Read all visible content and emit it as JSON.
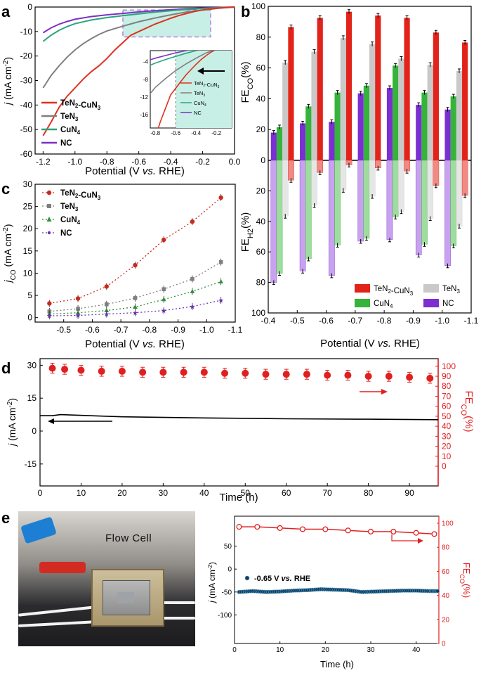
{
  "panels": {
    "a": "a",
    "b": "b",
    "c": "c",
    "d": "d",
    "e": "e"
  },
  "photo_label": "Flow   Cell",
  "chart_data": [
    {
      "id": "a",
      "type": "line",
      "xlabel": "Potential (V vs. RHE)",
      "ylabel": "j (mA cm-2)",
      "xlim": [
        -1.25,
        0.0
      ],
      "ylim": [
        -60,
        0
      ],
      "xticks": [
        -1.2,
        -1.0,
        -0.8,
        -0.6,
        -0.4,
        -0.2,
        0.0
      ],
      "xtick_labels": [
        "-1.2",
        "-1.0",
        "-0.8",
        "-0.6",
        "-0.4",
        "-0.2",
        "0.0"
      ],
      "yticks": [
        0,
        -10,
        -20,
        -30,
        -40,
        -50,
        -60
      ],
      "ytick_labels": [
        "0",
        "-10",
        "-20",
        "-30",
        "-40",
        "-50",
        "-60"
      ],
      "legend": [
        "TeN2-CuN3",
        "TeN3",
        "CuN4",
        "NC"
      ],
      "series": [
        {
          "name": "TeN2-CuN3",
          "color": "#e0301e",
          "x": [
            -1.2,
            -1.15,
            -1.1,
            -1.05,
            -1.0,
            -0.95,
            -0.9,
            -0.85,
            -0.8,
            -0.75,
            -0.7,
            -0.65,
            -0.6,
            -0.55,
            -0.5,
            -0.45,
            -0.4,
            -0.35,
            -0.3,
            -0.25,
            -0.2,
            -0.15,
            -0.1,
            0.0
          ],
          "y": [
            -52.5,
            -47,
            -41,
            -36.5,
            -33,
            -29.5,
            -26.5,
            -24,
            -21,
            -17.5,
            -14.5,
            -11.5,
            -10,
            -8.5,
            -7,
            -5.8,
            -4.6,
            -3.5,
            -2.6,
            -1.8,
            -1.2,
            -0.8,
            -0.4,
            0
          ]
        },
        {
          "name": "TeN3",
          "color": "#7f7f7f",
          "x": [
            -1.2,
            -1.15,
            -1.1,
            -1.05,
            -1.0,
            -0.95,
            -0.9,
            -0.85,
            -0.8,
            -0.7,
            -0.6,
            -0.5,
            -0.4,
            -0.3,
            -0.2,
            -0.1,
            0.0
          ],
          "y": [
            -33,
            -28,
            -24,
            -20.5,
            -17.5,
            -15,
            -13,
            -11.2,
            -9.8,
            -7.8,
            -6,
            -4.5,
            -3.2,
            -2,
            -1.2,
            -0.5,
            0
          ]
        },
        {
          "name": "CuN4",
          "color": "#2aa57a",
          "x": [
            -1.2,
            -1.15,
            -1.1,
            -1.05,
            -1.0,
            -0.9,
            -0.8,
            -0.7,
            -0.6,
            -0.5,
            -0.4,
            -0.3,
            -0.2,
            -0.1,
            0.0
          ],
          "y": [
            -14,
            -11.5,
            -9.5,
            -8,
            -6.8,
            -5.3,
            -4.3,
            -3.5,
            -2.8,
            -2.1,
            -1.5,
            -1,
            -0.6,
            -0.3,
            0
          ]
        },
        {
          "name": "NC",
          "color": "#7f2fc4",
          "x": [
            -1.2,
            -1.15,
            -1.1,
            -1.05,
            -1.0,
            -0.9,
            -0.8,
            -0.7,
            -0.6,
            -0.5,
            -0.4,
            -0.3,
            -0.2,
            -0.1,
            0.0
          ],
          "y": [
            -10.5,
            -8.5,
            -7,
            -5.9,
            -5,
            -3.9,
            -3.2,
            -2.6,
            -2,
            -1.5,
            -1.1,
            -0.7,
            -0.4,
            -0.2,
            0
          ]
        }
      ],
      "inset": {
        "xlim": [
          -0.85,
          -0.05
        ],
        "ylim": [
          -19,
          -1.5
        ],
        "xticks": [
          -0.8,
          -0.6,
          -0.4,
          -0.2
        ],
        "xtick_labels": [
          "-0.8",
          "-0.6",
          "-0.4",
          "-0.2"
        ],
        "yticks": [
          -4,
          -8,
          -12,
          -16
        ],
        "ytick_labels": [
          "-4",
          "-8",
          "-12",
          "-16"
        ],
        "legend": [
          "TeN2-CuN3",
          "TeN3",
          "CuN4",
          "NC"
        ],
        "vline": -0.6
      }
    },
    {
      "id": "b",
      "type": "bar",
      "xlabel": "Potential (V vs. RHE)",
      "ylabel_top": "FE CO (%)",
      "ylabel_bottom": "FE H2 (%)",
      "categories": [
        "-0.4",
        "-0.5",
        "-0.6",
        "-0.7",
        "-0.8",
        "-0.9",
        "-1.0",
        "-1.1"
      ],
      "xticks": [
        -0.4,
        -0.5,
        -0.6,
        -0.7,
        -0.8,
        -0.9,
        -1.0,
        -1.1
      ],
      "yticks_top": [
        100,
        80,
        60,
        40,
        20,
        0
      ],
      "yticks_bottom": [
        20,
        40,
        60,
        80,
        100
      ],
      "legend": [
        "TeN2-CuN3",
        "TeN3",
        "CuN4",
        "NC"
      ],
      "positions": [
        -0.45,
        -0.55,
        -0.65,
        -0.75,
        -0.85,
        -0.95,
        -1.05
      ],
      "fe_co": {
        "NC": [
          18,
          24,
          25,
          43.5,
          47,
          36,
          33
        ],
        "CuN4": [
          21.5,
          35,
          44,
          48.5,
          61.5,
          44,
          41.5
        ],
        "TeN3": [
          63.5,
          70.5,
          79.5,
          75.5,
          66,
          62,
          58
        ],
        "TeN2-CuN3": [
          86.5,
          92.5,
          96.5,
          94,
          92.5,
          83,
          76.5
        ]
      },
      "fe_h2": {
        "NC": [
          80,
          72.5,
          75.5,
          53,
          52,
          62,
          69
        ],
        "CuN4": [
          74,
          64.5,
          55.5,
          51,
          37,
          55,
          56
        ],
        "TeN3": [
          36.5,
          29.5,
          19.5,
          23.5,
          33.5,
          38,
          43
        ],
        "TeN2-CuN3": [
          13,
          8,
          3,
          5,
          7,
          16.5,
          23
        ]
      },
      "colors": {
        "TeN2-CuN3": "#e2231a",
        "TeN3": "#c9c9c9",
        "CuN4": "#35b33a",
        "NC": "#7b2fd3"
      }
    },
    {
      "id": "c",
      "type": "scatter",
      "xlabel": "Potential (V vs. RHE)",
      "ylabel": "jCO (mA cm-2)",
      "xlim": [
        -0.4,
        -1.1
      ],
      "ylim": [
        -1,
        30
      ],
      "xticks": [
        -0.5,
        -0.6,
        -0.7,
        -0.8,
        -0.9,
        -1.0,
        -1.1
      ],
      "xtick_labels": [
        "-0.5",
        "-0.6",
        "-0.7",
        "-0.8",
        "-0.9",
        "-1.0",
        "-1.1"
      ],
      "yticks": [
        0,
        5,
        10,
        15,
        20,
        25,
        30
      ],
      "legend": [
        "TeN2-CuN3",
        "TeN3",
        "CuN4",
        "NC"
      ],
      "x": [
        -0.45,
        -0.55,
        -0.65,
        -0.75,
        -0.85,
        -0.95,
        -1.05
      ],
      "series": [
        {
          "name": "TeN2-CuN3",
          "color": "#c82a1e",
          "marker": "circle",
          "values": [
            3.2,
            4.3,
            7.0,
            11.8,
            17.5,
            21.6,
            27.0
          ]
        },
        {
          "name": "TeN3",
          "color": "#7f7f7f",
          "marker": "square",
          "values": [
            1.4,
            2.0,
            3.0,
            4.4,
            6.4,
            8.7,
            12.5
          ]
        },
        {
          "name": "CuN4",
          "color": "#2f8f3a",
          "marker": "triangle",
          "values": [
            0.8,
            1.1,
            1.6,
            2.4,
            4.1,
            5.9,
            8.1
          ]
        },
        {
          "name": "NC",
          "color": "#6a2fb8",
          "marker": "star",
          "values": [
            0.4,
            0.5,
            0.8,
            1.1,
            1.6,
            2.5,
            3.9
          ]
        }
      ]
    },
    {
      "id": "d",
      "type": "line",
      "xlabel": "Time (h)",
      "ylabel": "j (mA cm-2)",
      "ylabel_right": "FE CO (%)",
      "xlim": [
        0,
        97
      ],
      "ylim": [
        -25,
        33
      ],
      "ylim_right": [
        0,
        107.6
      ],
      "xticks": [
        0,
        10,
        20,
        30,
        40,
        50,
        60,
        70,
        80,
        90
      ],
      "yticks": [
        30,
        15,
        0,
        -15
      ],
      "yticks_right": [
        0,
        10,
        20,
        30,
        40,
        50,
        60,
        70,
        80,
        90,
        100
      ],
      "current": {
        "x": [
          0,
          3,
          5,
          20,
          40,
          60,
          80,
          97
        ],
        "y": [
          7.0,
          7.0,
          7.5,
          6.5,
          6.0,
          5.6,
          5.4,
          5.2
        ]
      },
      "fe": {
        "x": [
          3,
          6,
          10,
          15,
          20,
          25,
          30,
          35,
          40,
          45,
          50,
          55,
          60,
          65,
          70,
          75,
          80,
          85,
          90,
          95
        ],
        "y": [
          98,
          97,
          96,
          95,
          95,
          94,
          94,
          94,
          94,
          93,
          93,
          92,
          92,
          92,
          91,
          91,
          90,
          90,
          89,
          88
        ],
        "err": 5
      }
    },
    {
      "id": "e",
      "type": "line",
      "xlabel": "Time (h)",
      "ylabel": "j (mA cm-2)",
      "ylabel_right": "FE CO (%)",
      "annotation": "-0.65 V vs. RHE",
      "xlim": [
        0,
        45
      ],
      "ylim": [
        -150,
        100
      ],
      "ylim_right": [
        0,
        100
      ],
      "xticks": [
        0,
        10,
        20,
        30,
        40
      ],
      "yticks": [
        50,
        0,
        -50,
        -100
      ],
      "yticks_right": [
        0,
        20,
        40,
        60,
        80,
        100
      ],
      "current": {
        "x": [
          1,
          4,
          7,
          10,
          13,
          16,
          19,
          22,
          25,
          28,
          31,
          34,
          37,
          40,
          43,
          45
        ],
        "y": [
          -50,
          -48,
          -50,
          -49,
          -47,
          -46,
          -44,
          -45,
          -46,
          -50,
          -49,
          -48,
          -47,
          -47,
          -48,
          -48
        ]
      },
      "fe": {
        "x": [
          1,
          5,
          10,
          15,
          20,
          25,
          30,
          35,
          40,
          44
        ],
        "y": [
          97,
          97,
          96,
          95,
          95,
          94,
          93,
          93,
          92,
          91
        ],
        "err": 2
      }
    }
  ]
}
